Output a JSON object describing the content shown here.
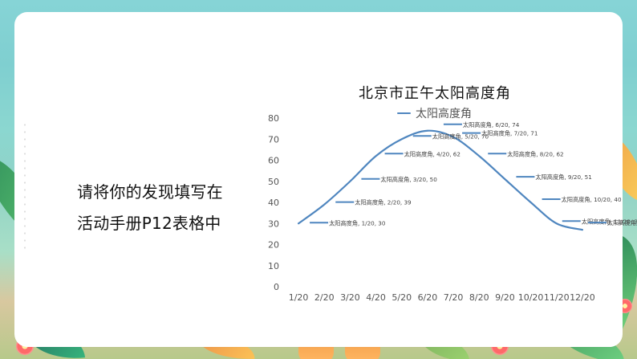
{
  "page": {
    "instruction_lines": [
      "请将你的发现填写在",
      "活动手册P12表格中"
    ]
  },
  "colors": {
    "series": "#4f86bf",
    "grid": "#ffffff",
    "axis_text": "#555555",
    "title": "#111111"
  },
  "chart_data": {
    "type": "line",
    "title": "北京市正午太阳高度角",
    "xlabel": "",
    "ylabel": "",
    "ylim": [
      0,
      80
    ],
    "yticks": [
      0,
      10,
      20,
      30,
      40,
      50,
      60,
      70,
      80
    ],
    "categories": [
      "1/20",
      "2/20",
      "3/20",
      "4/20",
      "5/20",
      "6/20",
      "7/20",
      "8/20",
      "9/20",
      "10/20",
      "11/20",
      "12/20"
    ],
    "series": [
      {
        "name": "太阳高度角",
        "values": [
          30,
          39,
          50,
          62,
          70,
          74,
          71,
          62,
          51,
          40,
          30,
          27
        ]
      }
    ],
    "point_labels": [
      "太阳高度角, 1/20, 30",
      "太阳高度角, 2/20, 39",
      "太阳高度角, 3/20, 50",
      "太阳高度角, 4/20, 62",
      "太阳高度角, 5/20, 70",
      "太阳高度角, 6/20, 74",
      "太阳高度角, 7/20, 71",
      "太阳高度角, 8/20, 62",
      "太阳高度角, 9/20, 51",
      "太阳高度角, 10/20, 40",
      "太阳高度角, 11/20, 30",
      "太阳高度角, 12/20, 27"
    ],
    "legend_position": "top-center",
    "grid": false
  }
}
